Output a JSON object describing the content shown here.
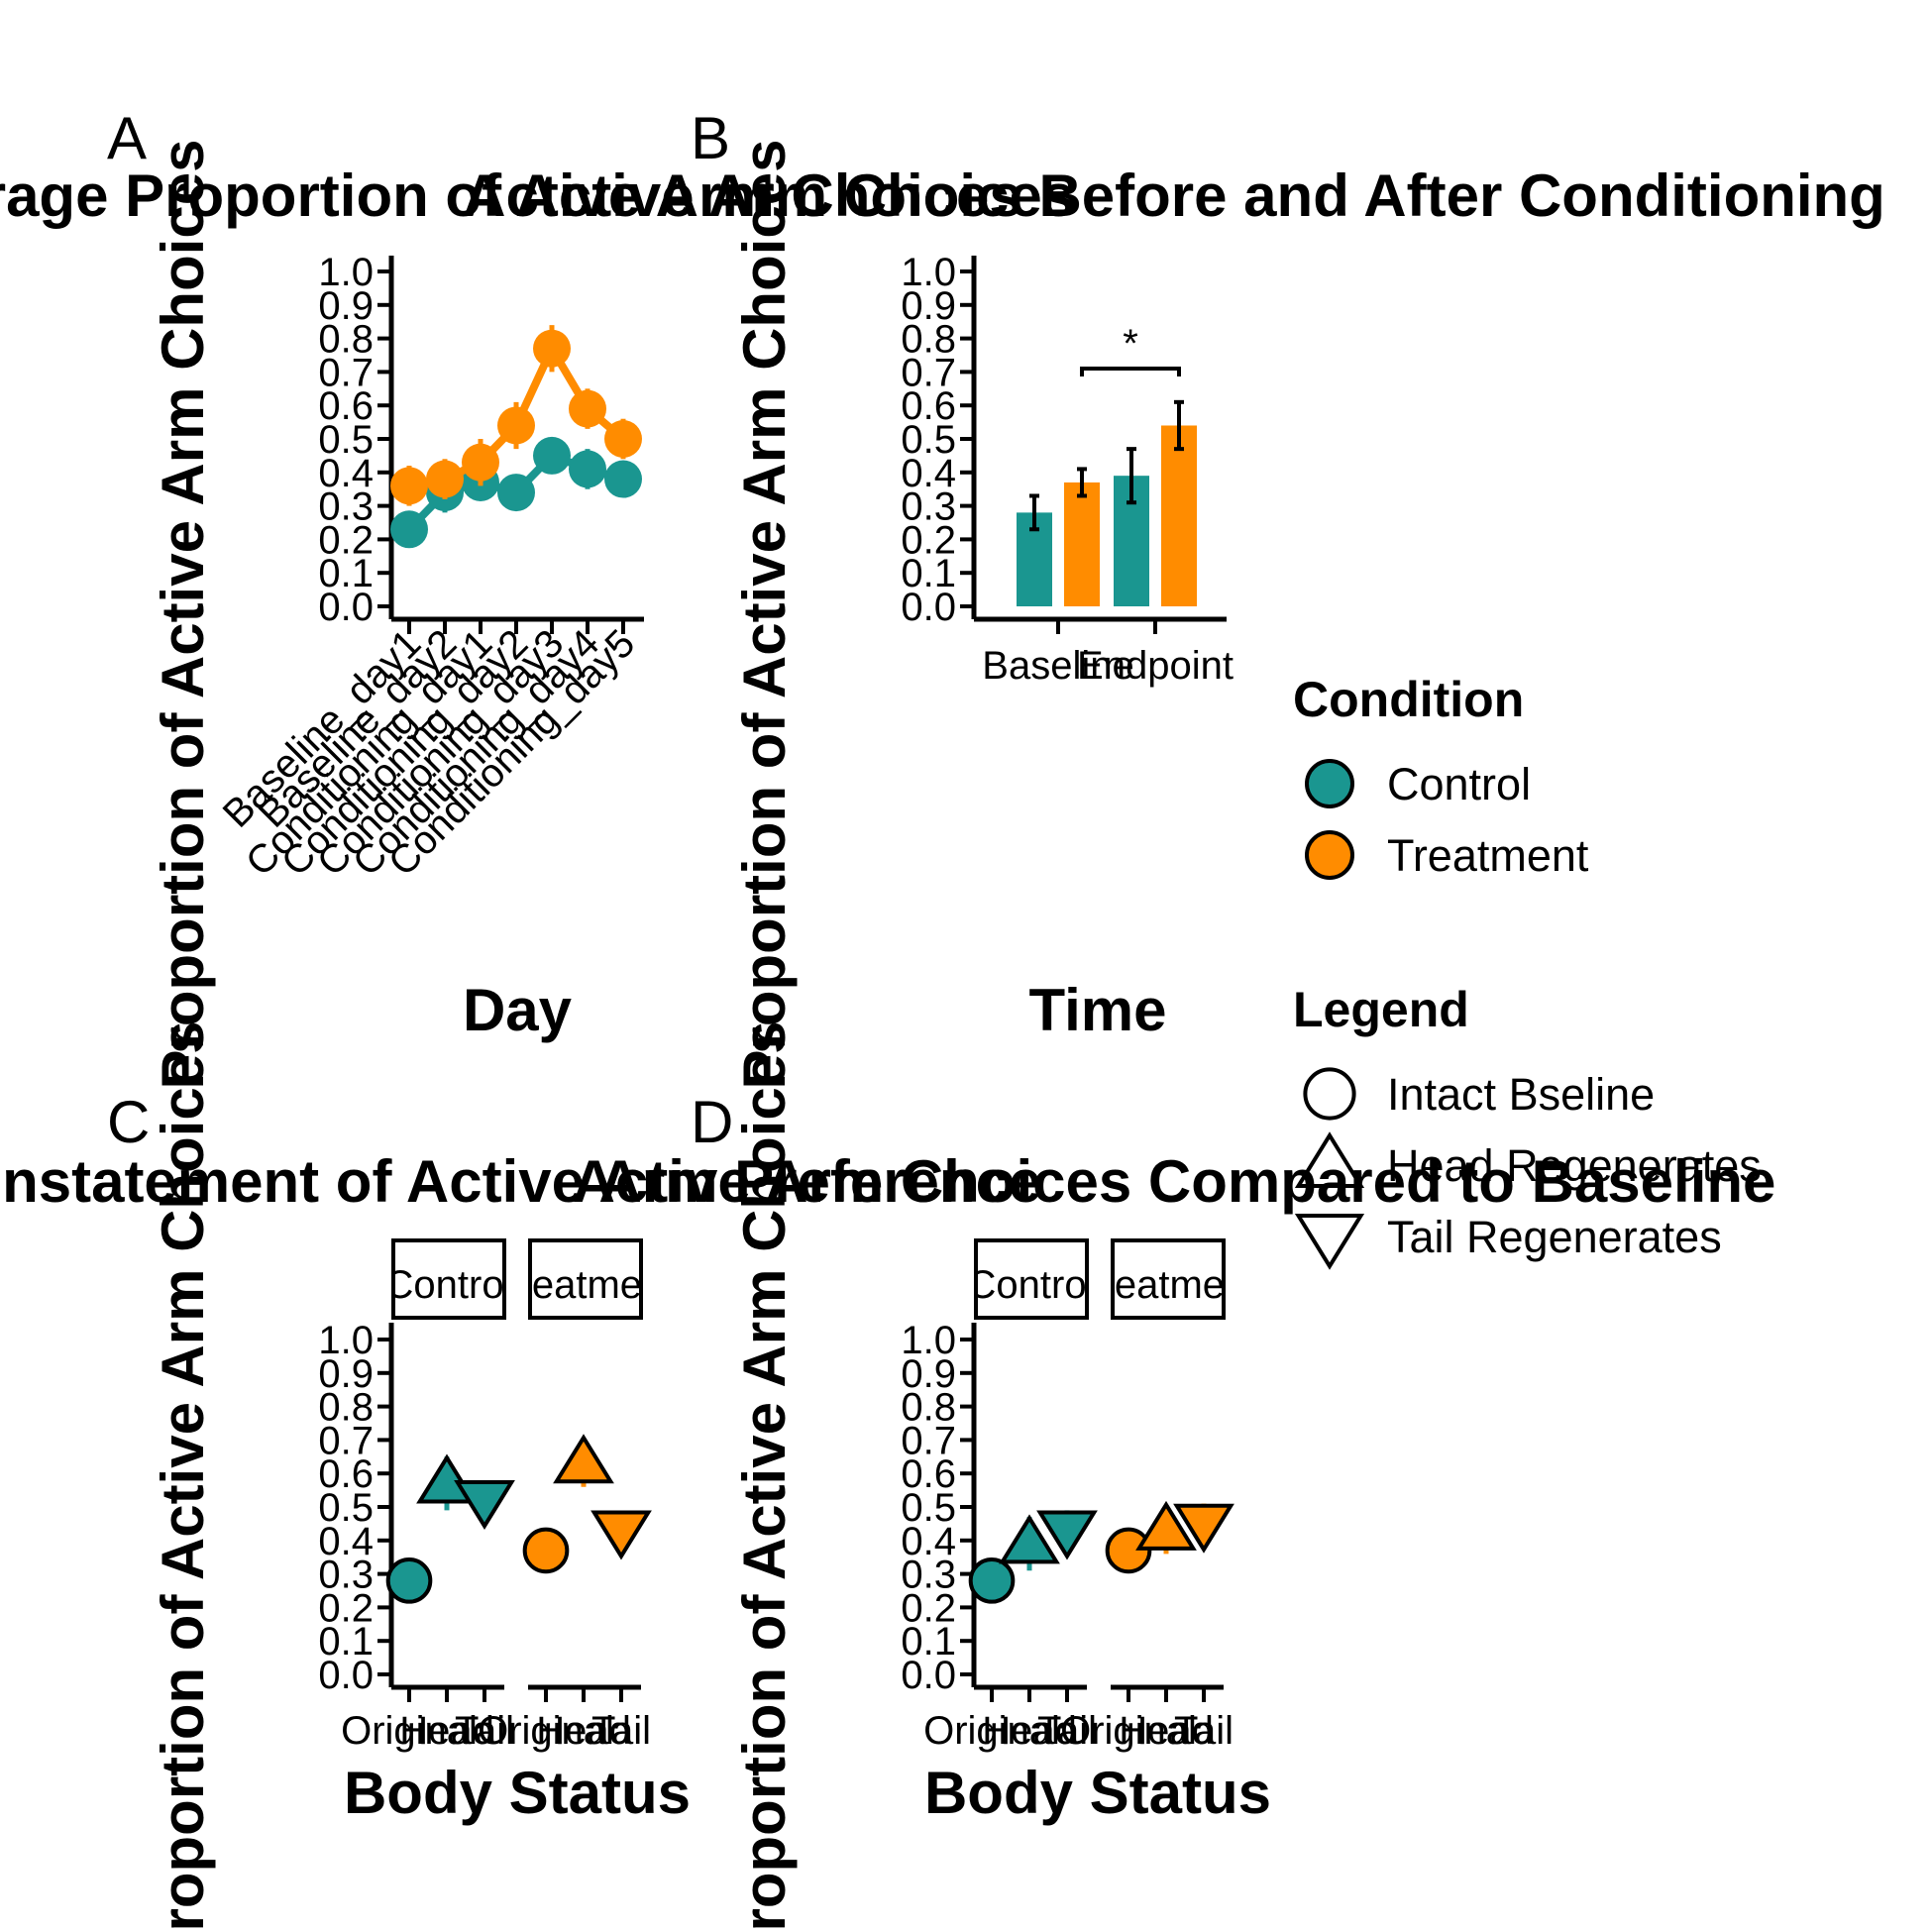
{
  "colors": {
    "control": "#1A9690",
    "treatment": "#FF8C00"
  },
  "chart_data": [
    {
      "panel": "A",
      "type": "line",
      "title": "Average Proportion of Active Arm Choices",
      "xlabel": "Day",
      "ylabel": "Proportion of Active Arm Choices",
      "ylim": [
        0,
        1
      ],
      "yticks": [
        "0.0",
        "0.1",
        "0.2",
        "0.3",
        "0.4",
        "0.5",
        "0.6",
        "0.7",
        "0.8",
        "0.9",
        "1.0"
      ],
      "categories": [
        "Baseline_day1",
        "Baseline_day2",
        "Conditioning_day1",
        "Conditioning_day2",
        "Conditioning_day3",
        "Conditioning_day4",
        "Conditioning_day5"
      ],
      "series": [
        {
          "name": "Control",
          "color": "control",
          "values": [
            0.23,
            0.34,
            0.37,
            0.34,
            0.45,
            0.41,
            0.38
          ],
          "err": [
            0.05,
            0.06,
            0.05,
            0.05,
            0.05,
            0.06,
            0.05
          ]
        },
        {
          "name": "Treatment",
          "color": "treatment",
          "values": [
            0.36,
            0.38,
            0.43,
            0.54,
            0.77,
            0.59,
            0.5
          ],
          "err": [
            0.06,
            0.06,
            0.07,
            0.07,
            0.07,
            0.06,
            0.06
          ]
        }
      ]
    },
    {
      "panel": "B",
      "type": "bar",
      "title": "Active Arm Choices Before and After Conditioning",
      "xlabel": "Time",
      "ylabel": "Proportion of Active Arm Choices",
      "ylim": [
        0,
        1
      ],
      "yticks": [
        "0.0",
        "0.1",
        "0.2",
        "0.3",
        "0.4",
        "0.5",
        "0.6",
        "0.7",
        "0.8",
        "0.9",
        "1.0"
      ],
      "categories": [
        "Baseline",
        "Endpoint"
      ],
      "series": [
        {
          "name": "Control",
          "color": "control",
          "values": [
            0.28,
            0.39
          ],
          "err": [
            0.05,
            0.08
          ]
        },
        {
          "name": "Treatment",
          "color": "treatment",
          "values": [
            0.37,
            0.54
          ],
          "err": [
            0.04,
            0.07
          ]
        }
      ],
      "annotation": "*"
    },
    {
      "panel": "C",
      "type": "scatter",
      "title": "Reinstatement of Active Arm Preference",
      "xlabel": "Body Status",
      "ylabel": "Proportion of Active Arm Choices",
      "ylim": [
        0,
        1
      ],
      "yticks": [
        "0.0",
        "0.1",
        "0.2",
        "0.3",
        "0.4",
        "0.5",
        "0.6",
        "0.7",
        "0.8",
        "0.9",
        "1.0"
      ],
      "facets": [
        "Control",
        "Treatment"
      ],
      "categories": [
        "Original",
        "Head",
        "Tail"
      ],
      "series": [
        {
          "facet": "Control",
          "color": "control",
          "shapes": [
            "circle",
            "triangle-up",
            "triangle-down"
          ],
          "values": [
            0.28,
            0.57,
            0.52
          ],
          "err": [
            0.0,
            0.08,
            0.05
          ]
        },
        {
          "facet": "Treatment",
          "color": "treatment",
          "shapes": [
            "circle",
            "triangle-up",
            "triangle-down"
          ],
          "values": [
            0.37,
            0.63,
            0.43
          ],
          "err": [
            0.0,
            0.07,
            0.05
          ]
        }
      ]
    },
    {
      "panel": "D",
      "type": "scatter",
      "title": "Active Arm Choices Compared to Baseline",
      "xlabel": "Body Status",
      "ylabel": "Proportion of Active Arm Choices",
      "ylim": [
        0,
        1
      ],
      "yticks": [
        "0.0",
        "0.1",
        "0.2",
        "0.3",
        "0.4",
        "0.5",
        "0.6",
        "0.7",
        "0.8",
        "0.9",
        "1.0"
      ],
      "facets": [
        "Control",
        "Treatment"
      ],
      "categories": [
        "Original",
        "Head",
        "Tail"
      ],
      "series": [
        {
          "facet": "Control",
          "color": "control",
          "shapes": [
            "circle",
            "triangle-up",
            "triangle-down"
          ],
          "values": [
            0.28,
            0.39,
            0.43
          ],
          "err": [
            0.0,
            0.08,
            0.06
          ]
        },
        {
          "facet": "Treatment",
          "color": "treatment",
          "shapes": [
            "circle",
            "triangle-up",
            "triangle-down"
          ],
          "values": [
            0.37,
            0.43,
            0.45
          ],
          "err": [
            0.0,
            0.07,
            0.06
          ]
        }
      ]
    }
  ],
  "legend": {
    "condition_title": "Condition",
    "condition_items": [
      {
        "label": "Control",
        "color": "control"
      },
      {
        "label": "Treatment",
        "color": "treatment"
      }
    ],
    "shape_title": "Legend",
    "shape_items": [
      {
        "label": "Intact Bseline",
        "shape": "circle"
      },
      {
        "label": "Head Regenerates",
        "shape": "triangle-up"
      },
      {
        "label": "Tail Regenerates",
        "shape": "triangle-down"
      }
    ]
  }
}
